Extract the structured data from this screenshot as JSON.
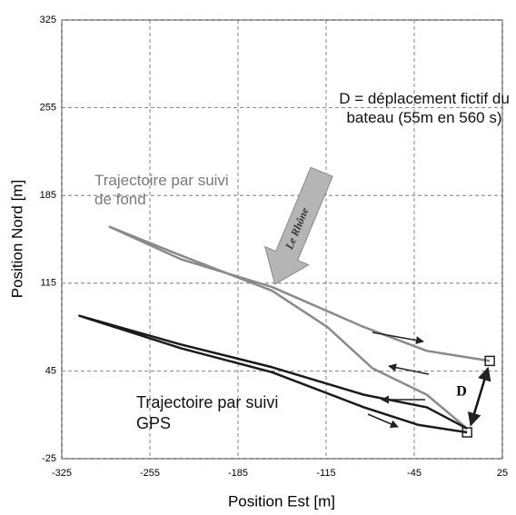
{
  "chart_data": {
    "type": "line",
    "xlabel": "Position Est [m]",
    "ylabel": "Position Nord [m]",
    "xlim": [
      -325,
      25
    ],
    "xticks": [
      -325,
      -255,
      -185,
      -115,
      -45,
      25
    ],
    "ylim": [
      -25,
      325
    ],
    "yticks": [
      -25,
      45,
      115,
      185,
      255,
      325
    ],
    "grid": true,
    "series": [
      {
        "name": "Trajectoire par suivi de fond",
        "color": "#8a8a8a",
        "x": [
          -3,
          -35,
          -78,
          -114,
          -158,
          -230,
          -287,
          -230,
          -158,
          -85,
          -35,
          15
        ],
        "values": [
          -1,
          26,
          47,
          80,
          109,
          137,
          160,
          134,
          112,
          80,
          61,
          53
        ]
      },
      {
        "name": "Trajectoire par suivi GPS",
        "color": "#1a1a1a",
        "x": [
          -3,
          -35,
          -85,
          -158,
          -230,
          -311,
          -230,
          -158,
          -85,
          -42,
          -3
        ],
        "values": [
          -1,
          16,
          26,
          48,
          66,
          89,
          63,
          44,
          16,
          2,
          -4
        ]
      }
    ],
    "annotations": [
      "D = déplacement fictif du bateau (55m en 560 s)",
      "D",
      "Le Rhône"
    ]
  }
}
